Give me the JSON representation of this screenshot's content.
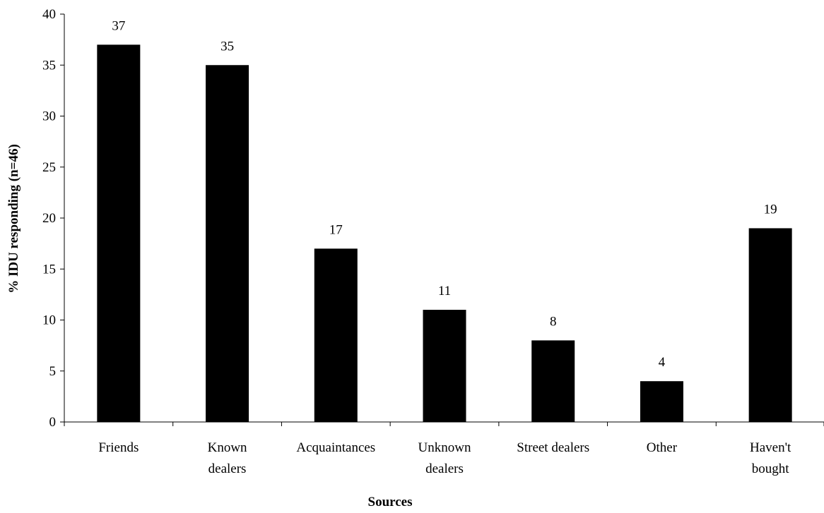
{
  "chart_data": {
    "type": "bar",
    "categories": [
      [
        "Friends"
      ],
      [
        "Known",
        "dealers"
      ],
      [
        "Acquaintances"
      ],
      [
        "Unknown",
        "dealers"
      ],
      [
        "Street dealers"
      ],
      [
        "Other"
      ],
      [
        "Haven't",
        "bought"
      ]
    ],
    "values": [
      37,
      35,
      17,
      11,
      8,
      4,
      19
    ],
    "data_labels": [
      "37",
      "35",
      "17",
      "11",
      "8",
      "4",
      "19"
    ],
    "xlabel": "Sources",
    "ylabel": "% IDU responding (n=46)",
    "ylim": [
      0,
      40
    ],
    "yticks": [
      0,
      5,
      10,
      15,
      20,
      25,
      30,
      35,
      40
    ],
    "bar_color": "#000000",
    "grid": false,
    "legend": "none"
  }
}
